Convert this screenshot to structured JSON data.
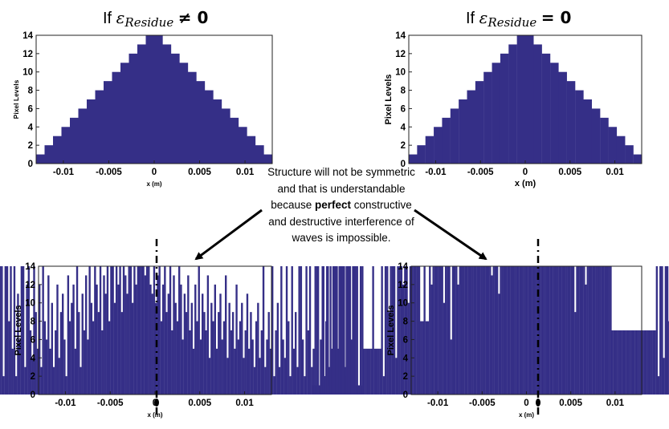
{
  "titles": {
    "left": {
      "prefix": "If ",
      "symbol": "ε",
      "subscript": "Residue",
      "operator": "≠ 0"
    },
    "right": {
      "prefix": "If ",
      "symbol": "ε",
      "subscript": "Residue",
      "operator": "= 0"
    }
  },
  "note": {
    "before": "Structure  will not be symmetric and that is understandable because ",
    "bold": "perfect",
    "after": " constructive and destructive interference of waves is impossible."
  },
  "colors": {
    "bar": "#352f87",
    "annotation": "#000000"
  },
  "chart_data": [
    {
      "type": "bar",
      "id": "top-left",
      "ylabel": "Pixel Levels",
      "xlabel": "x (m)",
      "xlim": [
        -0.013,
        0.013
      ],
      "ylim": [
        0,
        14
      ],
      "xticks": [
        -0.01,
        -0.005,
        0,
        0.005,
        0.01
      ],
      "xtick_labels": [
        "-0.01",
        "-0.005",
        "0",
        "0.005",
        "0.01"
      ],
      "yticks": [
        0,
        2,
        4,
        6,
        8,
        10,
        12,
        14
      ],
      "bin_width": 0.0009286,
      "values": [
        1,
        2,
        3,
        4,
        5,
        6,
        7,
        8,
        9,
        10,
        11,
        12,
        13,
        14,
        14,
        13,
        12,
        11,
        10,
        9,
        8,
        7,
        6,
        5,
        4,
        3,
        2,
        1
      ]
    },
    {
      "type": "bar",
      "id": "top-right",
      "ylabel": "Pixel Levels",
      "xlabel": "x (m)",
      "xlim": [
        -0.013,
        0.013
      ],
      "ylim": [
        0,
        14
      ],
      "xticks": [
        -0.01,
        -0.005,
        0,
        0.005,
        0.01
      ],
      "xtick_labels": [
        "-0.01",
        "-0.005",
        "0",
        "0.005",
        "0.01"
      ],
      "yticks": [
        0,
        2,
        4,
        6,
        8,
        10,
        12,
        14
      ],
      "bin_width": 0.0009286,
      "values": [
        1,
        2,
        3,
        4,
        5,
        6,
        7,
        8,
        9,
        10,
        11,
        12,
        13,
        14,
        14,
        13,
        12,
        11,
        10,
        9,
        8,
        7,
        6,
        5,
        4,
        3,
        2,
        1
      ]
    },
    {
      "type": "bar",
      "id": "bottom-left",
      "ylabel": "Pixel Levels",
      "xlabel": "x (m)",
      "xlim": [
        -0.013,
        0.013
      ],
      "ylim": [
        0,
        14
      ],
      "xticks": [
        -0.01,
        -0.005,
        0,
        0.005,
        0.01
      ],
      "xtick_labels": [
        "-0.01",
        "-0.005",
        "0",
        "0.005",
        "0.01"
      ],
      "yticks": [
        0,
        2,
        4,
        6,
        8,
        10,
        12,
        14
      ],
      "bin_width": 0.0002,
      "values": [
        1,
        1,
        14,
        1,
        14,
        6,
        14,
        2,
        14,
        14,
        1,
        10,
        14,
        3,
        14,
        14,
        6,
        14,
        2,
        14,
        14,
        1,
        9,
        14,
        14,
        4,
        14,
        14,
        14,
        7,
        14,
        14,
        2,
        14,
        14,
        8,
        14,
        5,
        14,
        2,
        11,
        6,
        14,
        14,
        3,
        12,
        14,
        7,
        4,
        14,
        9,
        5,
        12,
        3,
        14,
        8,
        6,
        13,
        5,
        10,
        3,
        7,
        12,
        4,
        9,
        11,
        6,
        2,
        13,
        8,
        10,
        12,
        5,
        14,
        9,
        3,
        11,
        7,
        13,
        6,
        14,
        10,
        8,
        14,
        12,
        9,
        14,
        7,
        13,
        11,
        14,
        8,
        14,
        14,
        10,
        14,
        12,
        14,
        9,
        14,
        13,
        11,
        14,
        14,
        10,
        14,
        12,
        14,
        14,
        14,
        14,
        13,
        14,
        14,
        12,
        11,
        14,
        10,
        13,
        14,
        8,
        12,
        14,
        9,
        11,
        14,
        7,
        13,
        10,
        8,
        14,
        12,
        6,
        11,
        9,
        13,
        7,
        10,
        5,
        12,
        8,
        14,
        6,
        11,
        9,
        7,
        13,
        4,
        10,
        8,
        12,
        5,
        9,
        11,
        6,
        8,
        13,
        4,
        10,
        7,
        9,
        5,
        12,
        6,
        8,
        10,
        4,
        7,
        11,
        5,
        9,
        6,
        3,
        8,
        10,
        4,
        7,
        14,
        3,
        6,
        9,
        5,
        14,
        2,
        7,
        10,
        3,
        14,
        6,
        4,
        14,
        8,
        2,
        14,
        5,
        9,
        3,
        14,
        14,
        6,
        2,
        14,
        7,
        14,
        3,
        5,
        14,
        14,
        1,
        6,
        14,
        2,
        8,
        14,
        3,
        5,
        14,
        14,
        14,
        2,
        14,
        14,
        14,
        3,
        14,
        14,
        1,
        14,
        1,
        1,
        1,
        1,
        1,
        1
      ]
    },
    {
      "type": "bar",
      "id": "bottom-right",
      "ylabel": "Pixel Levels",
      "xlabel": "x (m)",
      "xlim": [
        -0.013,
        0.013
      ],
      "ylim": [
        0,
        14
      ],
      "xticks": [
        -0.01,
        -0.005,
        0,
        0.005,
        0.01
      ],
      "xtick_labels": [
        "-0.01",
        "-0.005",
        "0",
        "0.005",
        "0.01"
      ],
      "yticks": [
        0,
        2,
        4,
        6,
        8,
        10,
        12,
        14
      ],
      "bin_width": 0.0002,
      "values": [
        1,
        1,
        1,
        14,
        1,
        1,
        14,
        2,
        14,
        1,
        14,
        4,
        14,
        14,
        5,
        14,
        14,
        14,
        2,
        14,
        14,
        14,
        6,
        14,
        14,
        14,
        1,
        14,
        14,
        5,
        5,
        5,
        5,
        5,
        14,
        5,
        5,
        5,
        5,
        14,
        2,
        14,
        14,
        9,
        14,
        14,
        14,
        4,
        14,
        14,
        14,
        12,
        14,
        14,
        10,
        14,
        14,
        14,
        14,
        14,
        14,
        8,
        8,
        14,
        8,
        8,
        14,
        12,
        14,
        14,
        14,
        14,
        14,
        14,
        10,
        14,
        14,
        14,
        6,
        14,
        14,
        14,
        12,
        14,
        14,
        14,
        14,
        14,
        14,
        14,
        14,
        14,
        14,
        14,
        14,
        14,
        14,
        14,
        14,
        14,
        14,
        13,
        14,
        14,
        14,
        11,
        14,
        14,
        14,
        14,
        14,
        14,
        14,
        14,
        14,
        14,
        14,
        14,
        14,
        14,
        14,
        14,
        14,
        14,
        14,
        14,
        14,
        14,
        14,
        14,
        14,
        14,
        14,
        14,
        14,
        14,
        14,
        14,
        14,
        14,
        14,
        14,
        14,
        14,
        14,
        14,
        14,
        14,
        9,
        14,
        14,
        14,
        14,
        14,
        12,
        14,
        14,
        14,
        14,
        14,
        14,
        14,
        14,
        14,
        14,
        14,
        14,
        14,
        14,
        7,
        7,
        7,
        7,
        7,
        7,
        7,
        7,
        7,
        7,
        7,
        7,
        7,
        7,
        7,
        7,
        7,
        7,
        7,
        7,
        7,
        7,
        7,
        7,
        7,
        14,
        2,
        14,
        14,
        4,
        14,
        14,
        8,
        14,
        2,
        14,
        14,
        5,
        14,
        14,
        14,
        14,
        14,
        14,
        14,
        14,
        14,
        14,
        14,
        3,
        5,
        5,
        5,
        5,
        5,
        5,
        5,
        5,
        5,
        5,
        5,
        5,
        5,
        14,
        1,
        14,
        14,
        14,
        1,
        1,
        1,
        1,
        1
      ]
    }
  ]
}
